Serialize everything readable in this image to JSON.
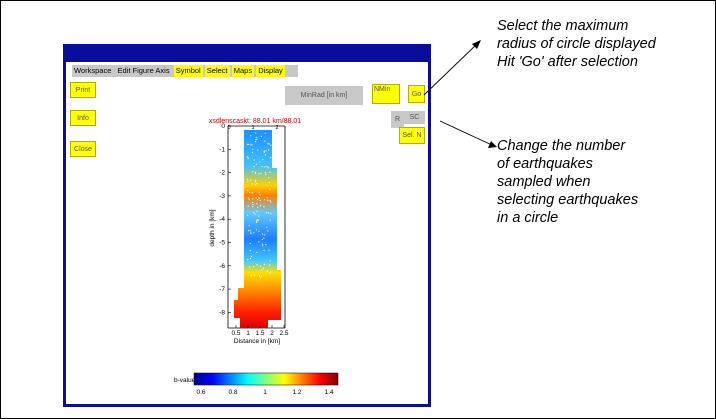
{
  "window": {
    "menu": [
      {
        "label": "Workspace",
        "highlight": false
      },
      {
        "label": "Edit Figure Axis",
        "highlight": false
      },
      {
        "label": "Symbol",
        "highlight": true
      },
      {
        "label": "Select",
        "highlight": true
      },
      {
        "label": "Maps",
        "highlight": true
      },
      {
        "label": "Display",
        "highlight": true
      }
    ],
    "buttons": {
      "print": "Print",
      "info": "Info",
      "close": "Close",
      "min_radius_field": "MinRad [in km]",
      "nmin": "NMin",
      "go": "Go",
      "small_left": "R",
      "small_right": "SC",
      "select": "Sel. N"
    },
    "plot": {
      "title": "xsdlenscaskt: 88.01 km/88.01",
      "ylabel": "depth in [km]",
      "xlabel": "Distance in [km]",
      "yticks": [
        "0",
        "-1",
        "-2",
        "-3",
        "-4",
        "-5",
        "-6",
        "-7",
        "-8"
      ],
      "xticks": [
        "0.5",
        "1",
        "1.5",
        "2",
        "2.5"
      ],
      "top_ticks": [
        "0",
        "1",
        "2"
      ],
      "colorbar_label": "b-value",
      "colorbar_ticks": [
        "0.6",
        "0.8",
        "1",
        "1.2",
        "1.4"
      ]
    }
  },
  "annotations": {
    "top": [
      "Select the maximum",
      "radius of circle displayed",
      "Hit 'Go' after selection"
    ],
    "bottom": [
      "Change the number",
      "of earthquakes",
      "sampled when",
      "selecting earthquakes",
      "in a circle"
    ]
  }
}
